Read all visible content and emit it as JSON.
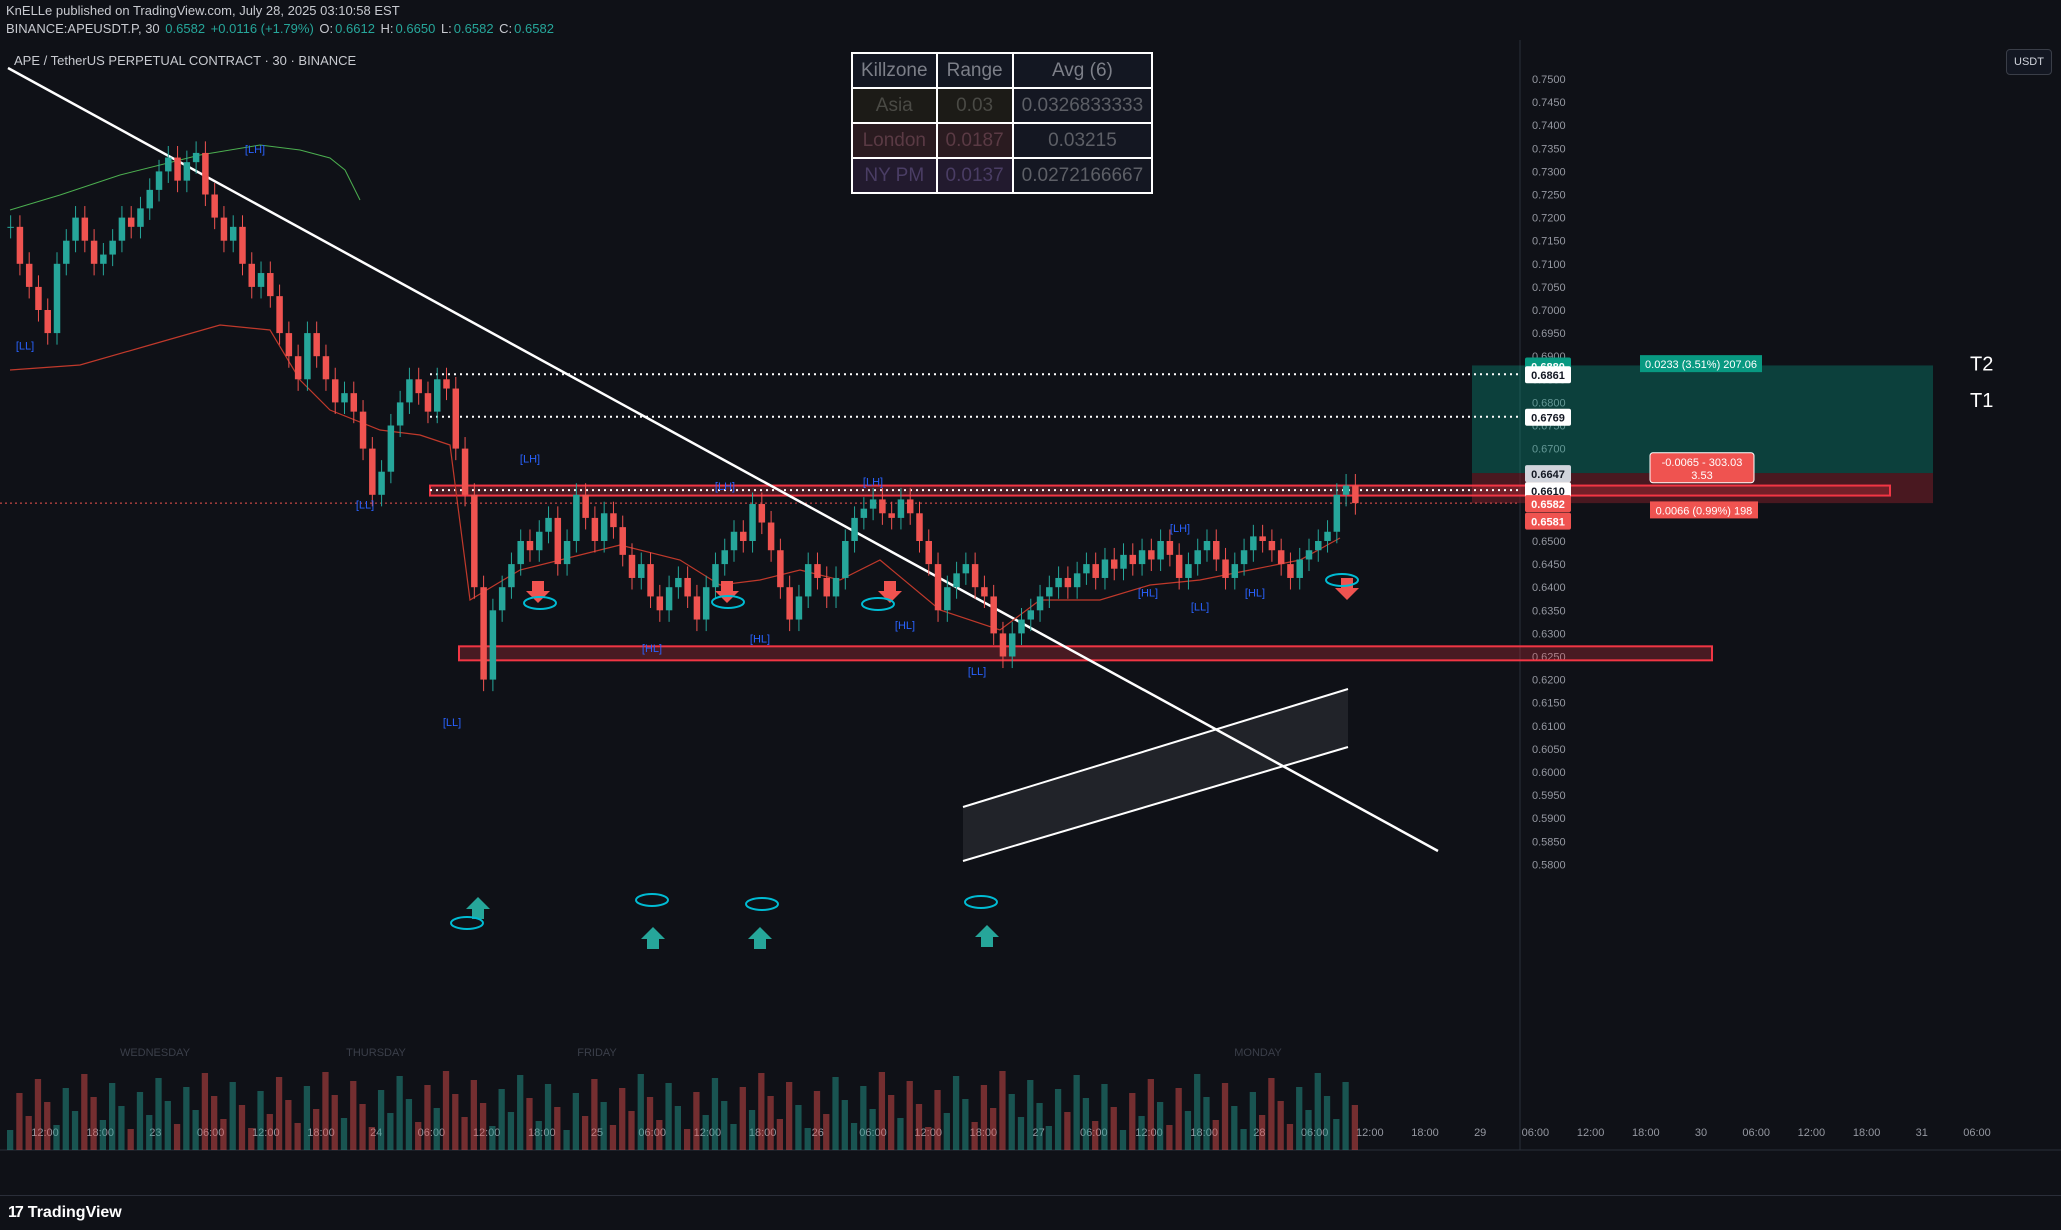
{
  "header": {
    "published_line": "KnELLe published on TradingView.com, July 28, 2025 03:10:58 EST",
    "symbol": "BINANCE:APEUSDT.P, 30",
    "ohlc": {
      "last": "0.6582",
      "change": "+0.0116 (+1.79%)",
      "o_label": "O:",
      "o": "0.6612",
      "h_label": "H:",
      "h": "0.6650",
      "l_label": "L:",
      "l": "0.6582",
      "c_label": "C:",
      "c": "0.6582"
    }
  },
  "legend_title": "APE / TetherUS PERPETUAL CONTRACT · 30 · BINANCE",
  "currency": "USDT",
  "killzone_table": {
    "headers": [
      "Killzone",
      "Range",
      "Avg (6)"
    ],
    "rows": [
      {
        "zone": "Asia",
        "range": "0.03",
        "avg": "0.0326833333"
      },
      {
        "zone": "London",
        "range": "0.0187",
        "avg": "0.03215"
      },
      {
        "zone": "NY PM",
        "range": "0.0137",
        "avg": "0.0272166667"
      }
    ]
  },
  "colors": {
    "background": "#0f1117",
    "up": "#26a69a",
    "down": "#ef5350",
    "trendline": "#ffffff",
    "zone": "#f23645",
    "target": "#089981",
    "ema_red": "#c0392b",
    "ema_green": "#4caf50",
    "volume_ma": "#2962ff"
  },
  "chart_data": {
    "type": "candlestick",
    "y_ticks": [
      "0.7500",
      "0.7450",
      "0.7400",
      "0.7350",
      "0.7300",
      "0.7250",
      "0.7200",
      "0.7150",
      "0.7100",
      "0.7050",
      "0.7000",
      "0.6950",
      "0.6900",
      "0.6850",
      "0.6800",
      "0.6750",
      "0.6700",
      "0.6650",
      "0.6600",
      "0.6550",
      "0.6500",
      "0.6450",
      "0.6400",
      "0.6350",
      "0.6300",
      "0.6250",
      "0.6200",
      "0.6150",
      "0.6100",
      "0.6050",
      "0.6000",
      "0.5950",
      "0.5900",
      "0.5850",
      "0.5800"
    ],
    "x_ticks": [
      "12:00",
      "18:00",
      "23",
      "06:00",
      "12:00",
      "18:00",
      "24",
      "06:00",
      "12:00",
      "18:00",
      "25",
      "06:00",
      "12:00",
      "18:00",
      "26",
      "06:00",
      "12:00",
      "18:00",
      "27",
      "06:00",
      "12:00",
      "18:00",
      "28",
      "06:00",
      "12:00",
      "18:00",
      "29",
      "06:00",
      "12:00",
      "18:00",
      "30",
      "06:00",
      "12:00",
      "18:00",
      "31",
      "06:00"
    ],
    "day_labels": [
      "WEDNESDAY",
      "THURSDAY",
      "FRIDAY",
      "MONDAY"
    ],
    "price_tags": [
      {
        "value": "0.6880",
        "kind": "green"
      },
      {
        "value": "0.6861",
        "kind": "white"
      },
      {
        "value": "0.6769",
        "kind": "white"
      },
      {
        "value": "0.6647",
        "kind": "gray"
      },
      {
        "value": "0.6610",
        "kind": "white"
      },
      {
        "value": "0.6582",
        "kind": "red"
      },
      {
        "value": "0.6581",
        "kind": "red"
      }
    ],
    "target_labels": [
      "T2",
      "T1"
    ],
    "position_boxes": {
      "profit_label": "0.0233 (3.51%) 207.06",
      "loss_label": "0.0066 (0.99%) 198",
      "mid_label_1": "-0.0065 - 303.03",
      "mid_label_2": "3.53"
    },
    "structure_labels": [
      {
        "text": "[LH]",
        "price": 0.734
      },
      {
        "text": "[LL]",
        "price": 0.6915
      },
      {
        "text": "[LL]",
        "price": 0.657
      },
      {
        "text": "[LL]",
        "price": 0.61
      },
      {
        "text": "[LH]",
        "price": 0.667
      },
      {
        "text": "[HL]",
        "price": 0.626
      },
      {
        "text": "[LH]",
        "price": 0.661
      },
      {
        "text": "[HL]",
        "price": 0.628
      },
      {
        "text": "[LH]",
        "price": 0.662
      },
      {
        "text": "[HL]",
        "price": 0.631
      },
      {
        "text": "[LL]",
        "price": 0.621
      },
      {
        "text": "[LH]",
        "price": 0.652
      },
      {
        "text": "[HL]",
        "price": 0.638
      },
      {
        "text": "[LL]",
        "price": 0.635
      },
      {
        "text": "[HL]",
        "price": 0.638
      }
    ],
    "drawn_levels": {
      "T2": 0.6861,
      "T1": 0.6769,
      "resistance": 0.661,
      "support": 0.6262
    },
    "close_series": [
      0.718,
      0.71,
      0.705,
      0.7,
      0.695,
      0.71,
      0.715,
      0.72,
      0.715,
      0.71,
      0.712,
      0.715,
      0.72,
      0.718,
      0.722,
      0.726,
      0.73,
      0.733,
      0.728,
      0.732,
      0.734,
      0.725,
      0.72,
      0.715,
      0.718,
      0.71,
      0.705,
      0.708,
      0.703,
      0.695,
      0.69,
      0.685,
      0.695,
      0.69,
      0.685,
      0.68,
      0.682,
      0.678,
      0.67,
      0.66,
      0.665,
      0.675,
      0.68,
      0.685,
      0.682,
      0.678,
      0.685,
      0.683,
      0.67,
      0.66,
      0.64,
      0.62,
      0.635,
      0.64,
      0.645,
      0.65,
      0.648,
      0.652,
      0.655,
      0.645,
      0.65,
      0.66,
      0.655,
      0.65,
      0.656,
      0.653,
      0.647,
      0.642,
      0.645,
      0.638,
      0.635,
      0.64,
      0.642,
      0.638,
      0.633,
      0.64,
      0.645,
      0.648,
      0.652,
      0.65,
      0.658,
      0.654,
      0.648,
      0.64,
      0.633,
      0.638,
      0.645,
      0.642,
      0.638,
      0.642,
      0.65,
      0.655,
      0.657,
      0.659,
      0.656,
      0.655,
      0.659,
      0.656,
      0.65,
      0.645,
      0.635,
      0.64,
      0.643,
      0.645,
      0.64,
      0.638,
      0.63,
      0.625,
      0.63,
      0.633,
      0.635,
      0.638,
      0.64,
      0.642,
      0.64,
      0.643,
      0.645,
      0.642,
      0.646,
      0.644,
      0.647,
      0.645,
      0.648,
      0.646,
      0.65,
      0.647,
      0.642,
      0.645,
      0.648,
      0.65,
      0.646,
      0.642,
      0.645,
      0.648,
      0.651,
      0.65,
      0.648,
      0.645,
      0.642,
      0.646,
      0.648,
      0.65,
      0.652,
      0.66,
      0.662,
      0.6582
    ]
  },
  "footer": {
    "logo_mark": "17",
    "logo_text": "TradingView"
  }
}
